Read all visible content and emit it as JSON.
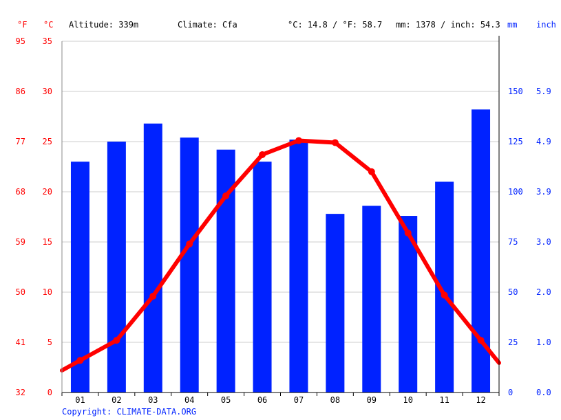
{
  "header": {
    "unit_f": "°F",
    "unit_c": "°C",
    "altitude": "Altitude: 339m",
    "climate": "Climate: Cfa",
    "temp_avg": "°C: 14.8 / °F: 58.7",
    "precip_total": "mm: 1378 / inch: 54.3",
    "unit_mm": "mm",
    "unit_inch": "inch"
  },
  "footer": {
    "copyright": "Copyright: CLIMATE-DATA.ORG"
  },
  "colors": {
    "temperature": "#ff0000",
    "precipitation": "#0022ff",
    "grid": "#cccccc",
    "axis": "#000000",
    "text": "#000000"
  },
  "chart_data": {
    "type": "bar",
    "categories": [
      "01",
      "02",
      "03",
      "04",
      "05",
      "06",
      "07",
      "08",
      "09",
      "10",
      "11",
      "12"
    ],
    "series": [
      {
        "type": "bar",
        "axis": "right",
        "unit": "mm",
        "values": [
          115,
          125,
          134,
          127,
          121,
          115,
          126,
          89,
          93,
          88,
          105,
          141
        ]
      },
      {
        "type": "line",
        "axis": "left",
        "unit": "°C",
        "values": [
          3.2,
          5.2,
          9.6,
          14.8,
          19.6,
          23.7,
          25.1,
          24.9,
          22.0,
          15.9,
          9.7,
          5.2
        ]
      }
    ],
    "left_axis_celsius": {
      "ticks": [
        "0",
        "5",
        "10",
        "15",
        "20",
        "25",
        "30",
        "35"
      ],
      "ylim": [
        0,
        35
      ]
    },
    "left_axis_fahrenheit": {
      "ticks": [
        "32",
        "41",
        "50",
        "59",
        "68",
        "77",
        "86",
        "95"
      ]
    },
    "right_axis_mm": {
      "ticks": [
        "0",
        "25",
        "50",
        "75",
        "100",
        "125",
        "150"
      ],
      "ylim": [
        0,
        175
      ]
    },
    "right_axis_inch": {
      "ticks": [
        "0.0",
        "1.0",
        "2.0",
        "3.0",
        "3.9",
        "4.9",
        "5.9"
      ]
    },
    "grid": true
  }
}
